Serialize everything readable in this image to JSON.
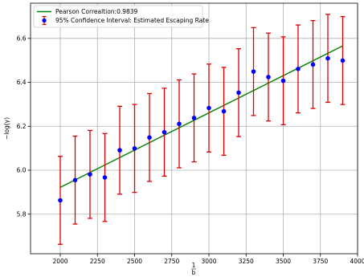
{
  "chart_data": {
    "type": "scatter",
    "x": [
      2000,
      2100,
      2200,
      2300,
      2400,
      2500,
      2600,
      2700,
      2800,
      2900,
      3000,
      3100,
      3200,
      3300,
      3400,
      3500,
      3600,
      3700,
      3800,
      3900
    ],
    "series": [
      {
        "name": "95% Confidence Interval: Estimated Escaping Rate",
        "kind": "errorbar",
        "y": [
          5.863,
          5.955,
          5.981,
          5.967,
          6.091,
          6.099,
          6.149,
          6.173,
          6.211,
          6.238,
          6.283,
          6.268,
          6.353,
          6.449,
          6.424,
          6.407,
          6.461,
          6.481,
          6.509,
          6.499
        ],
        "err": 0.2,
        "color": "#0000ff",
        "err_color": "#e00000"
      },
      {
        "name": "Pearson Correaltion:0.9839",
        "kind": "line",
        "x": [
          2000,
          3900
        ],
        "y": [
          5.922,
          6.566
        ],
        "color": "#008000"
      }
    ],
    "xlabel_num": "1",
    "xlabel_den": "b",
    "ylabel": "−log(γ)",
    "xlim": [
      1800,
      4000
    ],
    "ylim": [
      5.62,
      6.76
    ],
    "xticks": [
      2000,
      2250,
      2500,
      2750,
      3000,
      3250,
      3500,
      3750,
      4000
    ],
    "yticks": [
      5.8,
      6.0,
      6.2,
      6.4,
      6.6
    ],
    "grid": true,
    "legend_position": "top-left"
  }
}
